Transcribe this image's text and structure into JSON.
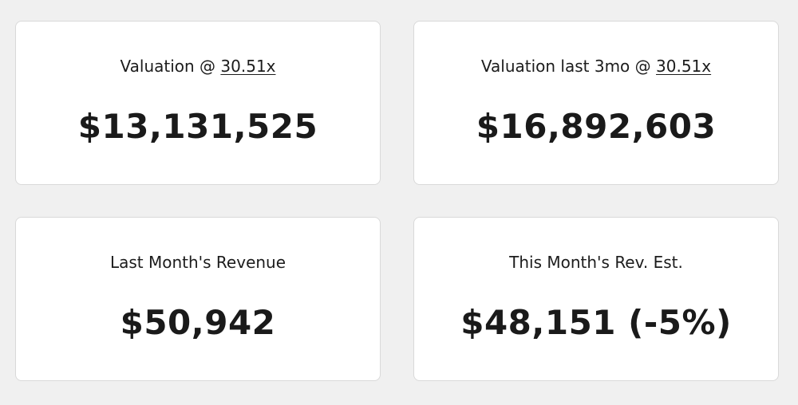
{
  "cards": [
    {
      "label_prefix": "Valuation @ ",
      "multiplier": "30.51x",
      "value": "$13,131,525"
    },
    {
      "label_prefix": "Valuation last 3mo @ ",
      "multiplier": "30.51x",
      "value": "$16,892,603"
    },
    {
      "label": "Last Month's Revenue",
      "value": "$50,942"
    },
    {
      "label": "This Month's Rev. Est.",
      "value": "$48,151 (-5%)"
    }
  ]
}
